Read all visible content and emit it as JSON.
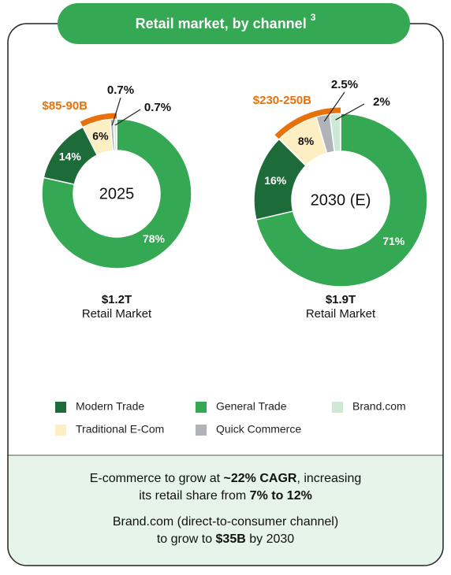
{
  "header": {
    "title": "Retail market, by channel",
    "footnote_mark": "3"
  },
  "legend": [
    {
      "name": "Modern Trade",
      "color": "#1e6b3a"
    },
    {
      "name": "General Trade",
      "color": "#34a853"
    },
    {
      "name": "Brand.com",
      "color": "#cde9d6"
    },
    {
      "name": "Traditional E-Com",
      "color": "#fdefc3"
    },
    {
      "name": "Quick Commerce",
      "color": "#b0b3b8"
    }
  ],
  "chart_data": [
    {
      "type": "pie",
      "center_label": "2025",
      "categories": [
        "General Trade",
        "Modern Trade",
        "Traditional E-Com",
        "Quick Commerce",
        "Brand.com"
      ],
      "values": [
        78,
        14,
        6,
        0.7,
        0.7
      ],
      "value_labels": [
        "78%",
        "14%",
        "6%",
        "0.7%",
        "0.7%"
      ],
      "range_annotation": {
        "label": "$85-90B",
        "color": "#e8710a",
        "categories": [
          "Traditional E-Com",
          "Quick Commerce",
          "Brand.com"
        ]
      },
      "total": "$1.2T",
      "total_label": "Retail Market"
    },
    {
      "type": "pie",
      "center_label": "2030 (E)",
      "categories": [
        "General Trade",
        "Modern Trade",
        "Traditional E-Com",
        "Quick Commerce",
        "Brand.com"
      ],
      "values": [
        71,
        16,
        8,
        2.5,
        2
      ],
      "value_labels": [
        "71%",
        "16%",
        "8%",
        "2.5%",
        "2%"
      ],
      "range_annotation": {
        "label": "$230-250B",
        "color": "#e8710a",
        "categories": [
          "Traditional E-Com",
          "Quick Commerce",
          "Brand.com"
        ]
      },
      "total": "$1.9T",
      "total_label": "Retail Market"
    }
  ],
  "footer": {
    "paragraphs": [
      [
        [
          {
            "text": "E-commerce to grow at ",
            "bold": false
          },
          {
            "text": "~22% CAGR",
            "bold": true
          },
          {
            "text": ", increasing",
            "bold": false
          }
        ],
        [
          {
            "text": "its retail share from ",
            "bold": false
          },
          {
            "text": "7% to 12%",
            "bold": true
          }
        ]
      ],
      [
        [
          {
            "text": "Brand.com (direct-to-consumer channel)",
            "bold": false
          }
        ],
        [
          {
            "text": "to grow to ",
            "bold": false
          },
          {
            "text": "$35B",
            "bold": true
          },
          {
            "text": " by 2030",
            "bold": false
          }
        ]
      ]
    ]
  }
}
